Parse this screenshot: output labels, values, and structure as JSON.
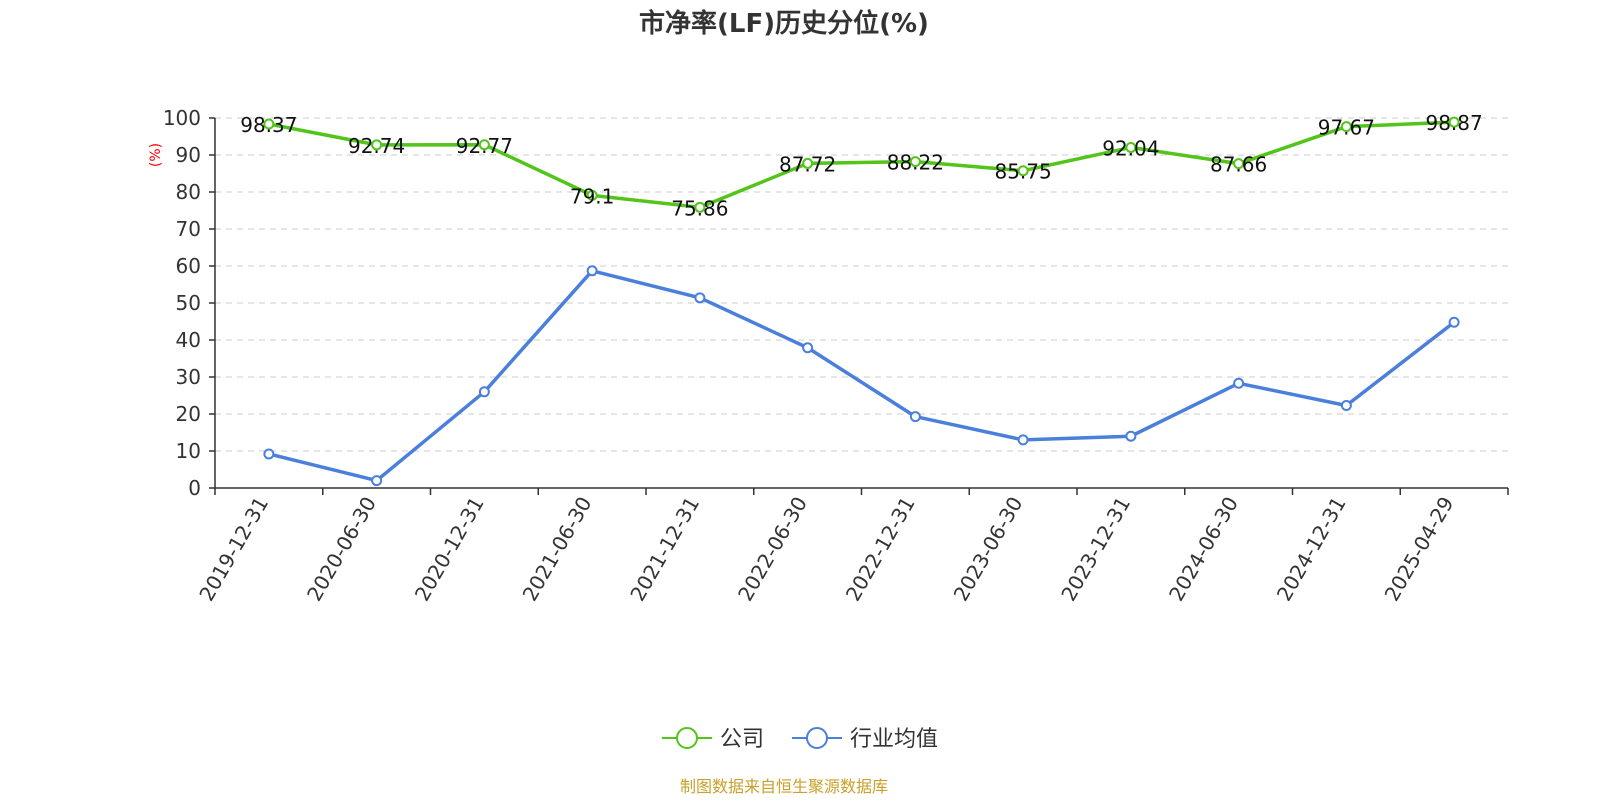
{
  "chart_data": {
    "type": "line",
    "title": "市净率(LF)历史分位(%)",
    "ylabel": "(%)",
    "xlabel": "",
    "ylim": [
      0,
      100
    ],
    "yticks": [
      0,
      10,
      20,
      30,
      40,
      50,
      60,
      70,
      80,
      90,
      100
    ],
    "grid": true,
    "legend_position": "bottom-center",
    "categories": [
      "2019-12-31",
      "2020-06-30",
      "2020-12-31",
      "2021-06-30",
      "2021-12-31",
      "2022-06-30",
      "2022-12-31",
      "2023-06-30",
      "2023-12-31",
      "2024-06-30",
      "2024-12-31",
      "2025-04-29"
    ],
    "series": [
      {
        "name": "公司",
        "color": "#52c41a",
        "values": [
          98.37,
          92.74,
          92.77,
          79.1,
          75.86,
          87.72,
          88.22,
          85.75,
          92.04,
          87.66,
          97.67,
          98.87
        ],
        "labels": [
          "98.37",
          "92.74",
          "92.77",
          "79.1",
          "75.86",
          "87.72",
          "88.22",
          "85.75",
          "92.04",
          "87.66",
          "97.67",
          "98.87"
        ],
        "show_labels": true
      },
      {
        "name": "行业均值",
        "color": "#4a7fdb",
        "values": [
          9.2,
          2.0,
          26.0,
          58.7,
          51.4,
          37.9,
          19.3,
          13.0,
          14.0,
          28.3,
          22.3,
          44.8
        ],
        "show_labels": false
      }
    ],
    "source": "制图数据来自恒生聚源数据库"
  }
}
